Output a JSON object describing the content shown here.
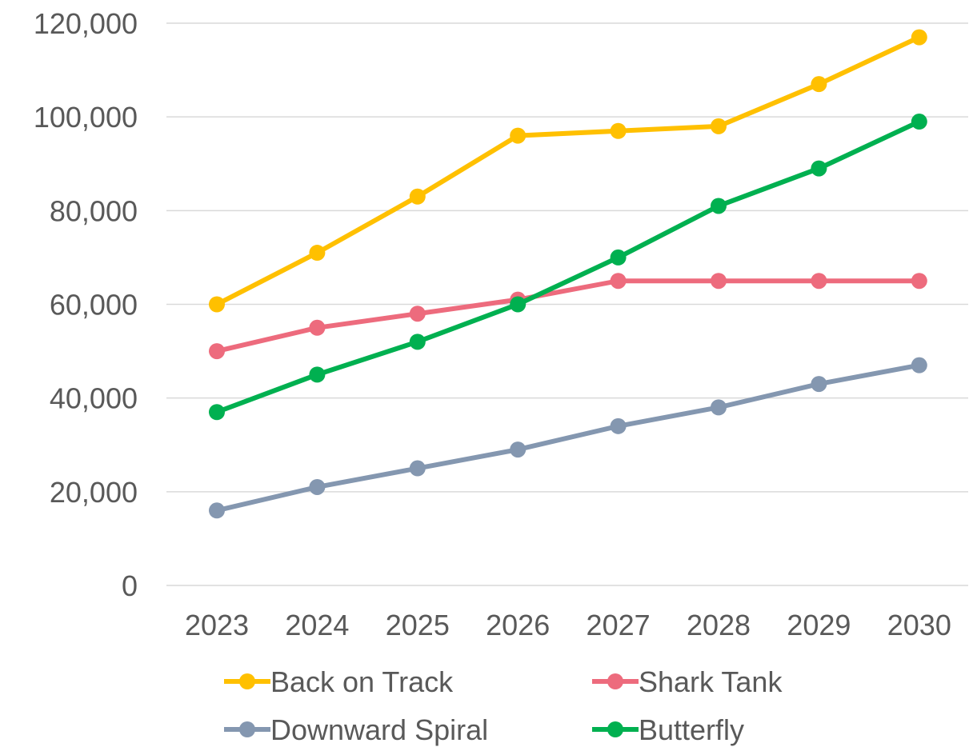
{
  "chart_data": {
    "type": "line",
    "title": "",
    "xlabel": "",
    "ylabel": "",
    "categories": [
      "2023",
      "2024",
      "2025",
      "2026",
      "2027",
      "2028",
      "2029",
      "2030"
    ],
    "ylim": [
      0,
      120000
    ],
    "yticks": [
      0,
      20000,
      40000,
      60000,
      80000,
      100000,
      120000
    ],
    "ytick_labels": [
      "0",
      "20,000",
      "40,000",
      "60,000",
      "80,000",
      "100,000",
      "120,000"
    ],
    "grid": true,
    "legend_position": "bottom",
    "series": [
      {
        "name": "Back on Track",
        "color": "#ffc000",
        "values": [
          60000,
          71000,
          83000,
          96000,
          97000,
          98000,
          107000,
          117000
        ]
      },
      {
        "name": "Shark Tank",
        "color": "#ed6b7d",
        "values": [
          50000,
          55000,
          58000,
          61000,
          65000,
          65000,
          65000,
          65000
        ]
      },
      {
        "name": "Downward Spiral",
        "color": "#8497b0",
        "values": [
          16000,
          21000,
          25000,
          29000,
          34000,
          38000,
          43000,
          47000
        ]
      },
      {
        "name": "Butterfly",
        "color": "#00b050",
        "values": [
          37000,
          45000,
          52000,
          60000,
          70000,
          81000,
          89000,
          99000
        ]
      }
    ]
  }
}
